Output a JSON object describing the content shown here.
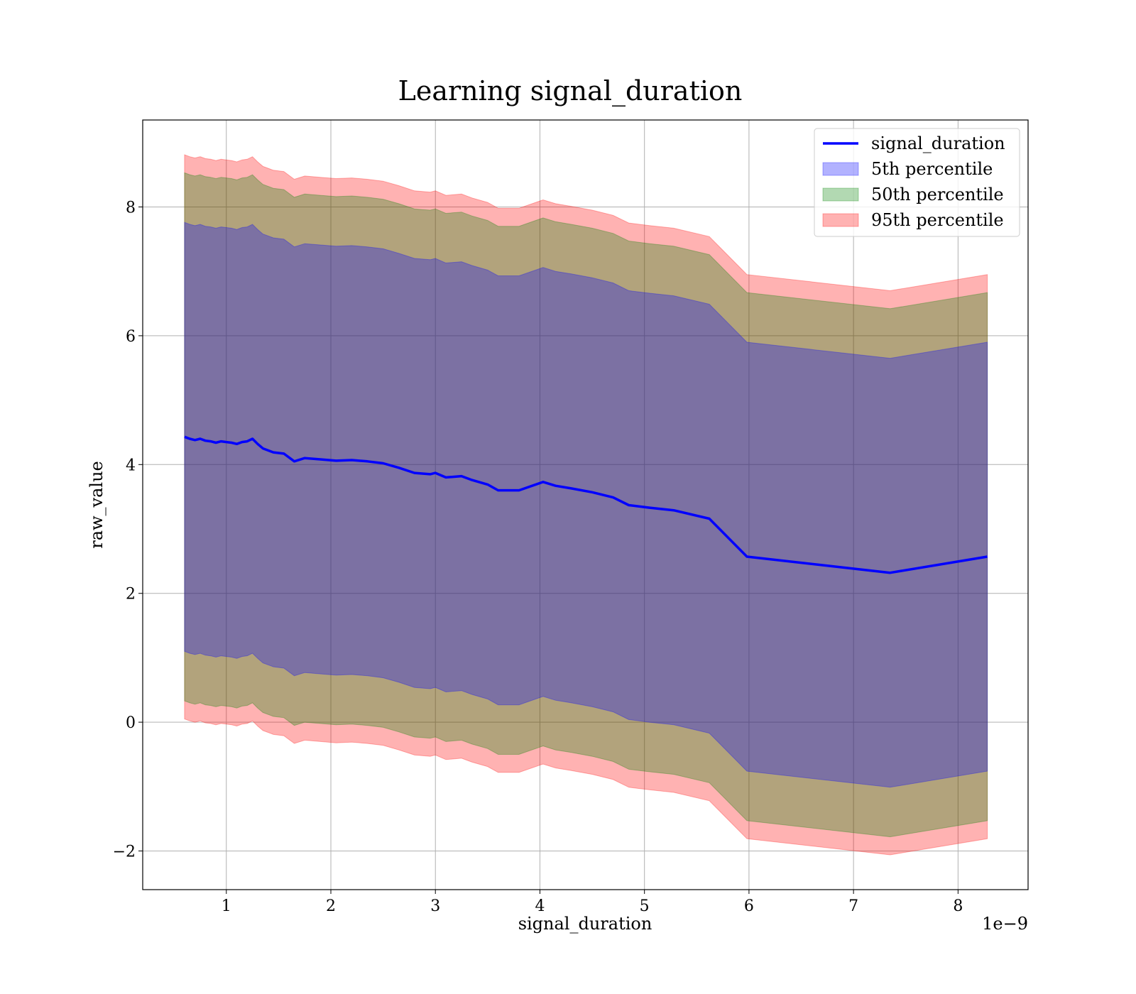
{
  "chart_data": {
    "type": "area",
    "title": "Learning signal_duration",
    "xlabel": "signal_duration",
    "ylabel": "raw_value",
    "x_offset_label": "1e−9",
    "xlim": [
      0.2,
      8.67
    ],
    "ylim": [
      -2.6,
      9.35
    ],
    "xticks": [
      1,
      2,
      3,
      4,
      5,
      6,
      7,
      8
    ],
    "yticks": [
      -2,
      0,
      2,
      4,
      6,
      8
    ],
    "ytick_labels": [
      "−2",
      "0",
      "2",
      "4",
      "6",
      "8"
    ],
    "grid": true,
    "legend_position": "upper-right",
    "x": [
      0.6,
      0.65,
      0.7,
      0.75,
      0.8,
      0.85,
      0.9,
      0.95,
      1.0,
      1.05,
      1.1,
      1.15,
      1.2,
      1.25,
      1.3,
      1.35,
      1.45,
      1.55,
      1.65,
      1.75,
      1.9,
      2.05,
      2.2,
      2.35,
      2.5,
      2.65,
      2.8,
      2.95,
      3.0,
      3.1,
      3.25,
      3.35,
      3.5,
      3.6,
      3.8,
      4.03,
      4.15,
      4.3,
      4.5,
      4.7,
      4.85,
      5.05,
      5.28,
      5.62,
      5.98,
      7.35,
      8.28
    ],
    "series": [
      {
        "name": "signal_duration",
        "kind": "line",
        "color": "#0000ff",
        "values": [
          4.43,
          4.4,
          4.38,
          4.4,
          4.37,
          4.36,
          4.34,
          4.36,
          4.35,
          4.34,
          4.32,
          4.35,
          4.36,
          4.4,
          4.32,
          4.25,
          4.19,
          4.17,
          4.05,
          4.1,
          4.08,
          4.06,
          4.07,
          4.05,
          4.02,
          3.95,
          3.87,
          3.85,
          3.87,
          3.8,
          3.82,
          3.76,
          3.69,
          3.6,
          3.6,
          3.73,
          3.67,
          3.63,
          3.57,
          3.49,
          3.37,
          3.33,
          3.29,
          3.16,
          2.57,
          2.32,
          2.57
        ]
      },
      {
        "name": "5th percentile",
        "kind": "band",
        "color": "#0000ff",
        "opacity": 0.3,
        "delta": [
          3.33,
          3.33,
          3.33,
          3.33,
          3.33,
          3.33,
          3.33,
          3.33,
          3.33,
          3.33,
          3.33,
          3.33,
          3.33,
          3.33,
          3.33,
          3.33,
          3.33,
          3.33,
          3.33,
          3.33,
          3.33,
          3.33,
          3.33,
          3.33,
          3.33,
          3.33,
          3.33,
          3.33,
          3.33,
          3.33,
          3.33,
          3.33,
          3.33,
          3.33,
          3.33,
          3.33,
          3.33,
          3.33,
          3.33,
          3.33,
          3.33,
          3.33,
          3.33,
          3.33,
          3.33,
          3.33,
          3.33
        ]
      },
      {
        "name": "50th percentile",
        "kind": "band",
        "color": "#008000",
        "opacity": 0.3,
        "delta": [
          4.1,
          4.1,
          4.1,
          4.1,
          4.1,
          4.1,
          4.1,
          4.1,
          4.1,
          4.1,
          4.1,
          4.1,
          4.1,
          4.1,
          4.1,
          4.1,
          4.1,
          4.1,
          4.1,
          4.1,
          4.1,
          4.1,
          4.1,
          4.1,
          4.1,
          4.1,
          4.1,
          4.1,
          4.1,
          4.1,
          4.1,
          4.1,
          4.1,
          4.1,
          4.1,
          4.1,
          4.1,
          4.1,
          4.1,
          4.1,
          4.1,
          4.1,
          4.1,
          4.1,
          4.1,
          4.1,
          4.1
        ]
      },
      {
        "name": "95th percentile",
        "kind": "band",
        "color": "#ff0000",
        "opacity": 0.3,
        "delta": [
          4.38,
          4.38,
          4.38,
          4.38,
          4.38,
          4.38,
          4.38,
          4.38,
          4.38,
          4.38,
          4.38,
          4.38,
          4.38,
          4.38,
          4.38,
          4.38,
          4.38,
          4.38,
          4.38,
          4.38,
          4.38,
          4.38,
          4.38,
          4.38,
          4.38,
          4.38,
          4.38,
          4.38,
          4.38,
          4.38,
          4.38,
          4.38,
          4.38,
          4.38,
          4.38,
          4.38,
          4.38,
          4.38,
          4.38,
          4.38,
          4.38,
          4.38,
          4.38,
          4.38,
          4.38,
          4.38,
          4.38
        ]
      }
    ]
  }
}
